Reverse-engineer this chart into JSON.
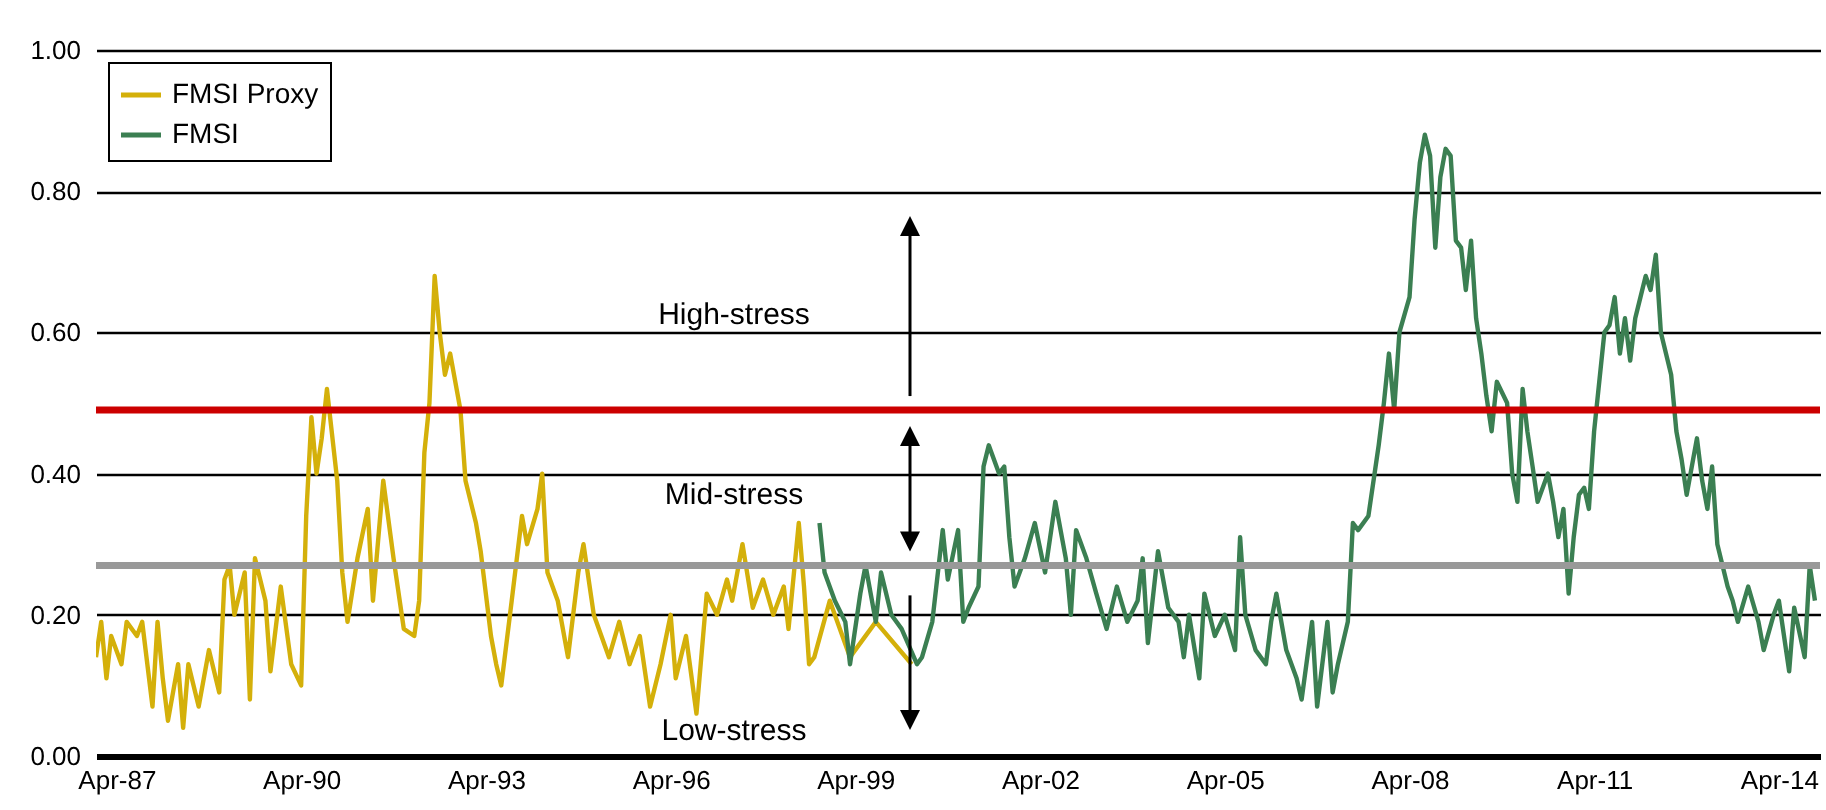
{
  "chart_data": {
    "type": "line",
    "annotations": [
      "High-stress",
      "Mid-stress",
      "Low-stress"
    ],
    "xlim": [
      "1986-12",
      "2014-12"
    ],
    "xticks": [
      {
        "value": "1987-04",
        "label": "Apr-87"
      },
      {
        "value": "1990-04",
        "label": "Apr-90"
      },
      {
        "value": "1993-04",
        "label": "Apr-93"
      },
      {
        "value": "1996-04",
        "label": "Apr-96"
      },
      {
        "value": "1999-04",
        "label": "Apr-99"
      },
      {
        "value": "2002-04",
        "label": "Apr-02"
      },
      {
        "value": "2005-04",
        "label": "Apr-05"
      },
      {
        "value": "2008-04",
        "label": "Apr-08"
      },
      {
        "value": "2011-04",
        "label": "Apr-11"
      },
      {
        "value": "2014-04",
        "label": "Apr-14"
      }
    ],
    "ylim": [
      0,
      1
    ],
    "yticks": [
      {
        "value": 0,
        "label": "0.00"
      },
      {
        "value": 0.2,
        "label": "0.20"
      },
      {
        "value": 0.4,
        "label": "0.40"
      },
      {
        "value": 0.6,
        "label": "0.60"
      },
      {
        "value": 0.8,
        "label": "0.80"
      },
      {
        "value": 1,
        "label": "1.00"
      }
    ],
    "grid": "y",
    "legend": "top left",
    "ref_lines": [
      {
        "axis": "y",
        "value": 0.49,
        "color": "#cc0000"
      },
      {
        "axis": "y",
        "value": 0.27,
        "color": "#999999"
      }
    ],
    "series": [
      {
        "name": "FMSI Proxy",
        "color": "#d4b00a",
        "x": [
          "1986-12",
          "1987-01",
          "1987-02",
          "1987-03",
          "1987-05",
          "1987-06",
          "1987-08",
          "1987-09",
          "1987-11",
          "1987-12",
          "1988-01",
          "1988-02",
          "1988-04",
          "1988-05",
          "1988-06",
          "1988-08",
          "1988-10",
          "1988-12",
          "1989-01",
          "1989-02",
          "1989-03",
          "1989-05",
          "1989-06",
          "1989-07",
          "1989-09",
          "1989-10",
          "1989-12",
          "1990-02",
          "1990-04",
          "1990-05",
          "1990-06",
          "1990-07",
          "1990-08",
          "1990-09",
          "1990-11",
          "1990-12",
          "1991-01",
          "1991-03",
          "1991-05",
          "1991-06",
          "1991-08",
          "1991-10",
          "1991-12",
          "1992-02",
          "1992-03",
          "1992-04",
          "1992-05",
          "1992-06",
          "1992-07",
          "1992-08",
          "1992-09",
          "1992-11",
          "1992-12",
          "1993-02",
          "1993-03",
          "1993-05",
          "1993-06",
          "1993-07",
          "1993-09",
          "1993-11",
          "1993-12",
          "1994-02",
          "1994-03",
          "1994-04",
          "1994-06",
          "1994-08",
          "1994-10",
          "1994-11",
          "1995-01",
          "1995-04",
          "1995-06",
          "1995-08",
          "1995-10",
          "1995-12",
          "1996-02",
          "1996-04",
          "1996-05",
          "1996-07",
          "1996-09",
          "1996-11",
          "1997-01",
          "1997-03",
          "1997-04",
          "1997-06",
          "1997-08",
          "1997-10",
          "1997-12",
          "1998-02",
          "1998-03",
          "1998-05",
          "1998-06",
          "1998-07",
          "1998-08",
          "1998-11",
          "1999-03",
          "1999-08",
          "2000-03"
        ],
        "values": [
          0.14,
          0.19,
          0.11,
          0.17,
          0.13,
          0.19,
          0.17,
          0.19,
          0.07,
          0.19,
          0.11,
          0.05,
          0.13,
          0.04,
          0.13,
          0.07,
          0.15,
          0.09,
          0.25,
          0.27,
          0.2,
          0.26,
          0.08,
          0.28,
          0.22,
          0.12,
          0.24,
          0.13,
          0.1,
          0.34,
          0.48,
          0.4,
          0.45,
          0.52,
          0.39,
          0.26,
          0.19,
          0.28,
          0.35,
          0.22,
          0.39,
          0.28,
          0.18,
          0.17,
          0.22,
          0.43,
          0.5,
          0.68,
          0.6,
          0.54,
          0.57,
          0.49,
          0.39,
          0.33,
          0.29,
          0.17,
          0.13,
          0.1,
          0.22,
          0.34,
          0.3,
          0.35,
          0.4,
          0.26,
          0.22,
          0.14,
          0.26,
          0.3,
          0.2,
          0.14,
          0.19,
          0.13,
          0.17,
          0.07,
          0.13,
          0.2,
          0.11,
          0.17,
          0.06,
          0.23,
          0.2,
          0.25,
          0.22,
          0.3,
          0.21,
          0.25,
          0.2,
          0.24,
          0.18,
          0.33,
          0.24,
          0.13,
          0.14,
          0.22,
          0.14,
          0.19,
          0.13
        ]
      },
      {
        "name": "FMSI",
        "color": "#3b7f52",
        "x": [
          "1998-09",
          "1998-10",
          "1998-12",
          "1999-02",
          "1999-03",
          "1999-05",
          "1999-06",
          "1999-08",
          "1999-09",
          "1999-11",
          "2000-01",
          "2000-04",
          "2000-05",
          "2000-07",
          "2000-09",
          "2000-10",
          "2000-12",
          "2001-01",
          "2001-02",
          "2001-04",
          "2001-05",
          "2001-06",
          "2001-08",
          "2001-09",
          "2001-10",
          "2001-11",
          "2002-01",
          "2002-03",
          "2002-05",
          "2002-07",
          "2002-09",
          "2002-10",
          "2002-11",
          "2003-01",
          "2003-03",
          "2003-05",
          "2003-07",
          "2003-09",
          "2003-11",
          "2003-12",
          "2004-01",
          "2004-03",
          "2004-05",
          "2004-07",
          "2004-08",
          "2004-09",
          "2004-11",
          "2004-12",
          "2005-02",
          "2005-04",
          "2005-06",
          "2005-07",
          "2005-08",
          "2005-10",
          "2005-12",
          "2006-01",
          "2006-02",
          "2006-04",
          "2006-06",
          "2006-07",
          "2006-09",
          "2006-10",
          "2006-12",
          "2007-01",
          "2007-02",
          "2007-04",
          "2007-05",
          "2007-06",
          "2007-08",
          "2007-10",
          "2007-11",
          "2007-12",
          "2008-01",
          "2008-02",
          "2008-04",
          "2008-05",
          "2008-06",
          "2008-07",
          "2008-08",
          "2008-09",
          "2008-10",
          "2008-11",
          "2008-12",
          "2009-01",
          "2009-02",
          "2009-03",
          "2009-04",
          "2009-05",
          "2009-06",
          "2009-07",
          "2009-08",
          "2009-09",
          "2009-11",
          "2009-12",
          "2010-01",
          "2010-02",
          "2010-03",
          "2010-04",
          "2010-05",
          "2010-07",
          "2010-08",
          "2010-09",
          "2010-10",
          "2010-11",
          "2010-12",
          "2011-01",
          "2011-02",
          "2011-03",
          "2011-04",
          "2011-06",
          "2011-07",
          "2011-08",
          "2011-09",
          "2011-10",
          "2011-11",
          "2011-12",
          "2012-01",
          "2012-02",
          "2012-03",
          "2012-04",
          "2012-05",
          "2012-07",
          "2012-08",
          "2012-09",
          "2012-10",
          "2012-12",
          "2013-01",
          "2013-02",
          "2013-03",
          "2013-04",
          "2013-06",
          "2013-07",
          "2013-08",
          "2013-10",
          "2013-12",
          "2014-01",
          "2014-03",
          "2014-04",
          "2014-06",
          "2014-07",
          "2014-09",
          "2014-10",
          "2014-11"
        ],
        "values": [
          0.33,
          0.26,
          0.22,
          0.19,
          0.13,
          0.23,
          0.27,
          0.19,
          0.26,
          0.2,
          0.18,
          0.13,
          0.14,
          0.19,
          0.32,
          0.25,
          0.32,
          0.19,
          0.21,
          0.24,
          0.41,
          0.44,
          0.4,
          0.41,
          0.31,
          0.24,
          0.28,
          0.33,
          0.26,
          0.36,
          0.28,
          0.2,
          0.32,
          0.28,
          0.23,
          0.18,
          0.24,
          0.19,
          0.22,
          0.28,
          0.16,
          0.29,
          0.21,
          0.19,
          0.14,
          0.2,
          0.11,
          0.23,
          0.17,
          0.2,
          0.15,
          0.31,
          0.2,
          0.15,
          0.13,
          0.19,
          0.23,
          0.15,
          0.11,
          0.08,
          0.19,
          0.07,
          0.19,
          0.09,
          0.13,
          0.19,
          0.33,
          0.32,
          0.34,
          0.44,
          0.5,
          0.57,
          0.49,
          0.6,
          0.65,
          0.76,
          0.84,
          0.88,
          0.85,
          0.72,
          0.82,
          0.86,
          0.85,
          0.73,
          0.72,
          0.66,
          0.73,
          0.62,
          0.57,
          0.51,
          0.46,
          0.53,
          0.5,
          0.4,
          0.36,
          0.52,
          0.46,
          0.41,
          0.36,
          0.4,
          0.36,
          0.31,
          0.35,
          0.23,
          0.31,
          0.37,
          0.38,
          0.35,
          0.46,
          0.6,
          0.61,
          0.65,
          0.57,
          0.62,
          0.56,
          0.62,
          0.65,
          0.68,
          0.66,
          0.71,
          0.6,
          0.54,
          0.46,
          0.42,
          0.37,
          0.45,
          0.39,
          0.35,
          0.41,
          0.3,
          0.24,
          0.22,
          0.19,
          0.24,
          0.19,
          0.15,
          0.2,
          0.22,
          0.12,
          0.21,
          0.14,
          0.27,
          0.22
        ]
      }
    ]
  }
}
